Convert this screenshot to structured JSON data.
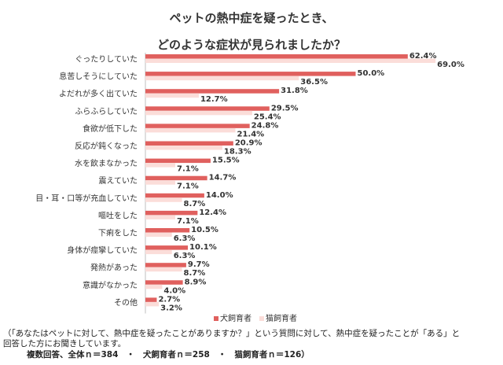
{
  "title_line1": "ペットの熱中症を疑ったとき、",
  "title_line2": "どのような症状が見られましたか？",
  "colors": {
    "dog": "#E0605E",
    "cat": "#FBDDD9"
  },
  "chart_data": {
    "type": "bar",
    "orientation": "horizontal",
    "title": "ペットの熱中症を疑ったとき、どのような症状が見られましたか？",
    "categories": [
      "ぐったりしていた",
      "息苦しそうにしていた",
      "よだれが多く出ていた",
      "ふらふらしていた",
      "食欲が低下した",
      "反応が鈍くなった",
      "水を飲まなかった",
      "震えていた",
      "目・耳・口等が充血していた",
      "嘔吐をした",
      "下痢をした",
      "身体が痙攣していた",
      "発熱があった",
      "意識がなかった",
      "その他"
    ],
    "series": [
      {
        "name": "犬飼育者",
        "values": [
          62.4,
          50.0,
          31.8,
          29.5,
          24.8,
          20.9,
          15.5,
          14.7,
          14.0,
          12.4,
          10.5,
          10.1,
          9.7,
          8.9,
          2.7
        ],
        "labels": [
          "62.4%",
          "50.0%",
          "31.8%",
          "29.5%",
          "24.8%",
          "20.9%",
          "15.5%",
          "14.7%",
          "14.0%",
          "12.4%",
          "10.5%",
          "10.1%",
          "9.7%",
          "8.9%",
          "2.7%"
        ]
      },
      {
        "name": "猫飼育者",
        "values": [
          69.0,
          36.5,
          12.7,
          25.4,
          21.4,
          18.3,
          7.1,
          7.1,
          8.7,
          7.1,
          6.3,
          6.3,
          8.7,
          4.0,
          3.2
        ],
        "labels": [
          "69.0%",
          "36.5%",
          "12.7%",
          "25.4%",
          "21.4%",
          "18.3%",
          "7.1%",
          "7.1%",
          "8.7%",
          "7.1%",
          "6.3%",
          "6.3%",
          "8.7%",
          "4.0%",
          "3.2%"
        ]
      }
    ],
    "xlim": [
      0,
      100
    ],
    "legend_position": "bottom"
  },
  "notes": [
    "（「あなたはペットに対して、熱中症を疑ったことがありますか？」という質問に対して、熱中症を疑ったことが「ある」と",
    "回答した方にお聞きしています。",
    "複数回答、全体ｎ＝384　・　犬飼育者ｎ＝258　・　猫飼育者ｎ＝126）"
  ]
}
